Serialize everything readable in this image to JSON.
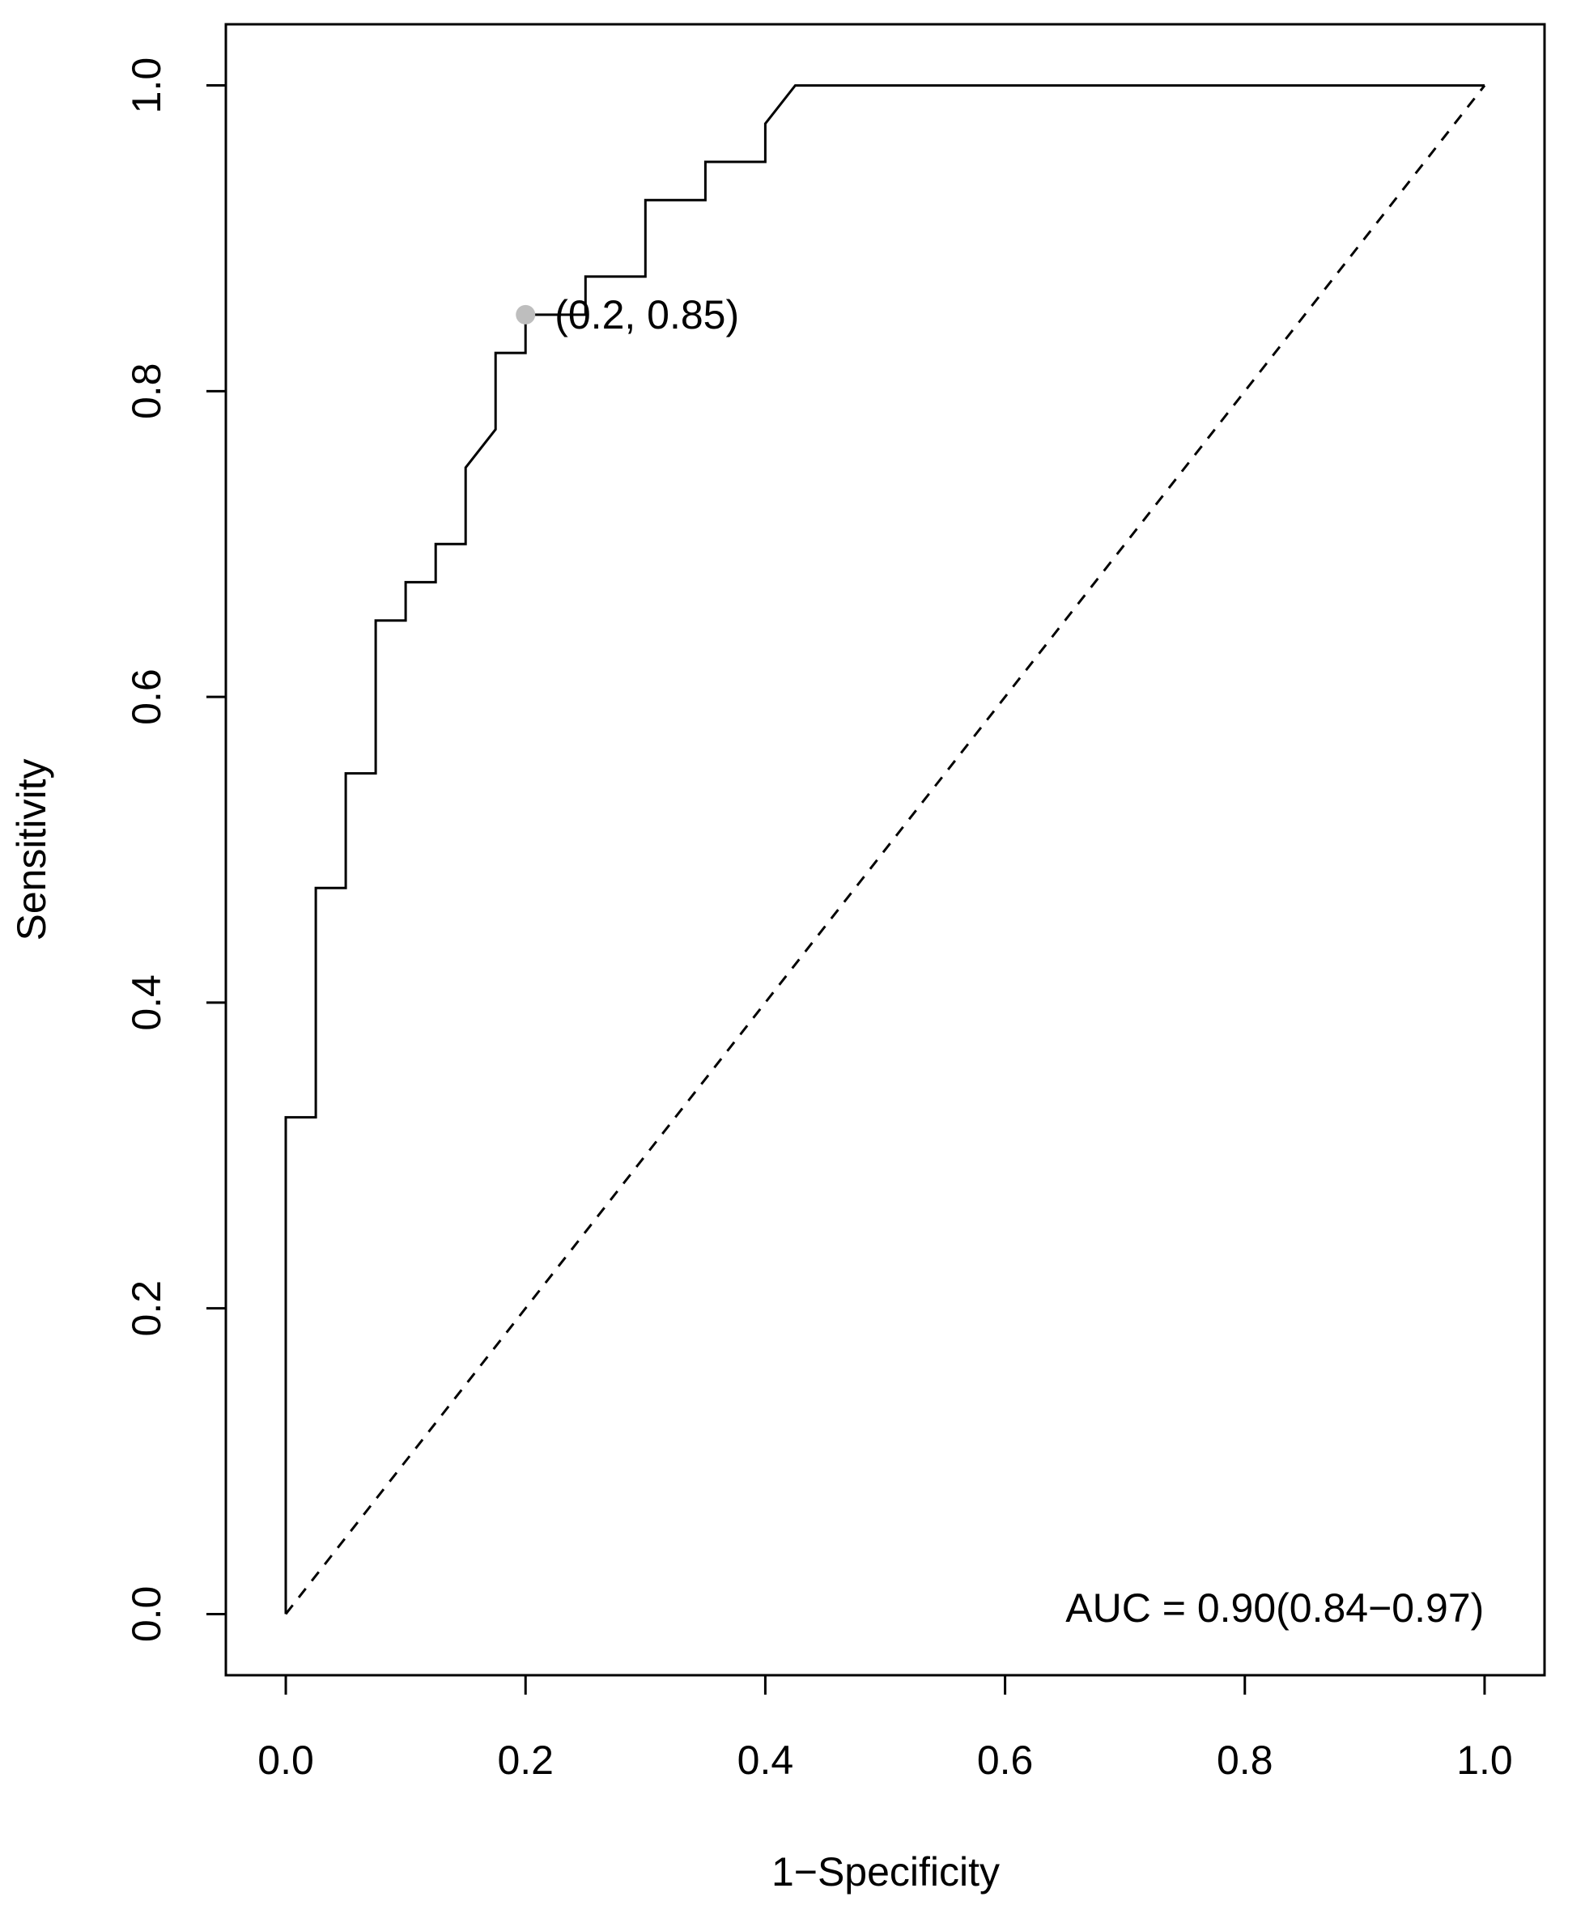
{
  "chart_data": {
    "type": "line",
    "title": "",
    "xlabel": "1−Specificity",
    "ylabel": "Sensitivity",
    "xlim": [
      -0.05,
      1.05
    ],
    "ylim": [
      -0.04,
      1.04
    ],
    "xticks": [
      {
        "value": 0.0,
        "label": "0.0"
      },
      {
        "value": 0.2,
        "label": "0.2"
      },
      {
        "value": 0.4,
        "label": "0.4"
      },
      {
        "value": 0.6,
        "label": "0.6"
      },
      {
        "value": 0.8,
        "label": "0.8"
      },
      {
        "value": 1.0,
        "label": "1.0"
      }
    ],
    "yticks": [
      {
        "value": 0.0,
        "label": "0.0"
      },
      {
        "value": 0.2,
        "label": "0.2"
      },
      {
        "value": 0.4,
        "label": "0.4"
      },
      {
        "value": 0.6,
        "label": "0.6"
      },
      {
        "value": 0.8,
        "label": "0.8"
      },
      {
        "value": 1.0,
        "label": "1.0"
      }
    ],
    "grid": false,
    "series": [
      {
        "style": "solid",
        "color": "#000000",
        "points": [
          [
            0.0,
            0.0
          ],
          [
            0.0,
            0.325
          ],
          [
            0.025,
            0.325
          ],
          [
            0.025,
            0.475
          ],
          [
            0.05,
            0.475
          ],
          [
            0.05,
            0.55
          ],
          [
            0.075,
            0.55
          ],
          [
            0.075,
            0.65
          ],
          [
            0.1,
            0.65
          ],
          [
            0.1,
            0.675
          ],
          [
            0.125,
            0.675
          ],
          [
            0.125,
            0.7
          ],
          [
            0.15,
            0.7
          ],
          [
            0.15,
            0.75
          ],
          [
            0.175,
            0.775
          ],
          [
            0.175,
            0.825
          ],
          [
            0.2,
            0.825
          ],
          [
            0.2,
            0.85
          ],
          [
            0.25,
            0.85
          ],
          [
            0.25,
            0.875
          ],
          [
            0.3,
            0.875
          ],
          [
            0.3,
            0.925
          ],
          [
            0.35,
            0.925
          ],
          [
            0.35,
            0.95
          ],
          [
            0.4,
            0.95
          ],
          [
            0.4,
            0.975
          ],
          [
            0.425,
            1.0
          ],
          [
            1.0,
            1.0
          ]
        ]
      },
      {
        "style": "dashed",
        "color": "#000000",
        "points": [
          [
            0.0,
            0.0
          ],
          [
            1.0,
            1.0
          ]
        ]
      }
    ],
    "highlight_point": {
      "x": 0.2,
      "y": 0.85,
      "color": "#bebebe",
      "label": "(0.2, 0.85)"
    },
    "annotations": [
      {
        "text": "AUC = 0.90(0.84−0.97)",
        "x": 0.825,
        "y": -0.005
      }
    ]
  }
}
